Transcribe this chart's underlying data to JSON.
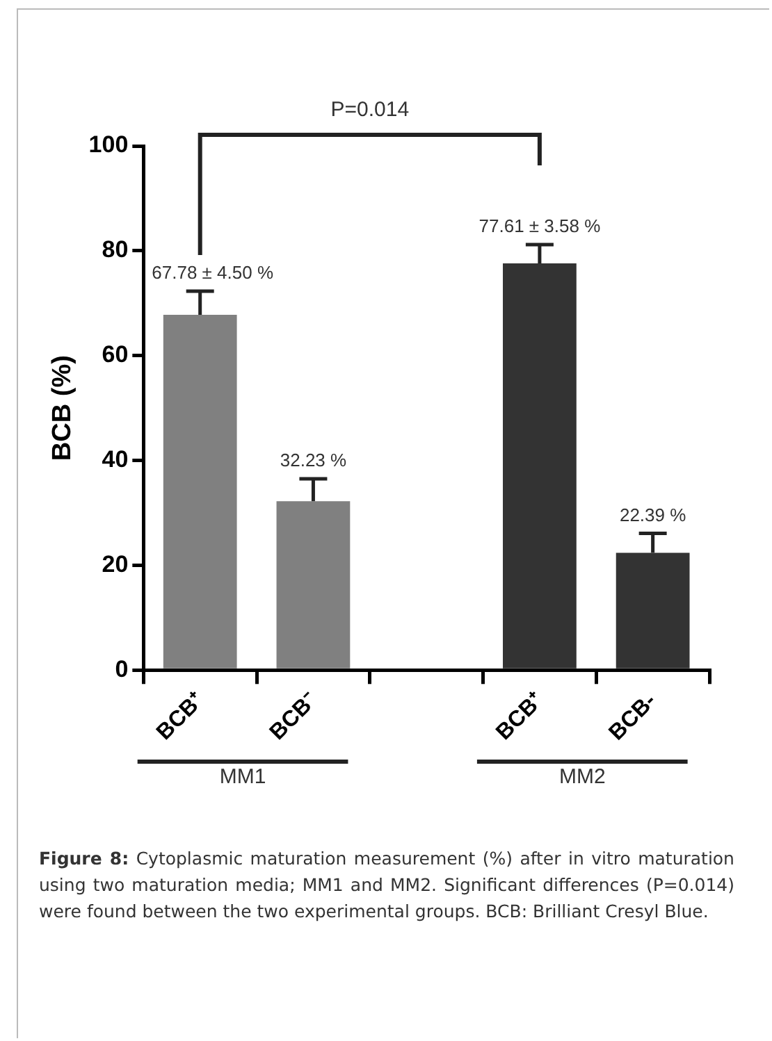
{
  "chart_data": {
    "type": "bar",
    "ylabel": "BCB (%)",
    "categories": [
      "BCB⁺",
      "BCB⁻",
      null,
      "BCB⁺",
      "BCB-"
    ],
    "values": [
      67.78,
      32.23,
      null,
      77.61,
      22.39
    ],
    "colors": [
      "#808080",
      "#808080",
      null,
      "#333333",
      "#333333"
    ],
    "errors": [
      [
        67.78,
        72.28
      ],
      [
        32.23,
        36.5
      ],
      null,
      [
        77.61,
        81.19
      ],
      [
        22.39,
        26.1
      ]
    ],
    "value_labels": [
      "67.78 ± 4.50 %",
      "32.23 %",
      null,
      "77.61 ± 3.58 %",
      "22.39 %"
    ],
    "ylim": [
      0,
      100
    ],
    "yticks": [
      0,
      20,
      40,
      60,
      80,
      100
    ],
    "grid": false,
    "legend": false,
    "annotations": [
      "P=0.014",
      "MM1",
      "MM2",
      "Figure 8: Cytoplasmic maturation measurement (%) after in vitro maturation using two maturation media; MM1 and MM2. Significant differences (P=0.014) were found between the two experimental groups. BCB: Brilliant Cresyl Blue."
    ]
  }
}
